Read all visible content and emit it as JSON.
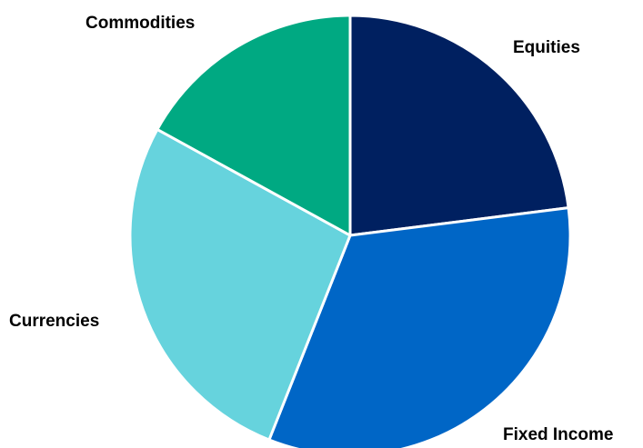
{
  "chart_data": {
    "type": "pie",
    "categories": [
      "Equities",
      "Fixed Income",
      "Currencies",
      "Commodities"
    ],
    "values": [
      23,
      33,
      27,
      17
    ],
    "colors": [
      "#002060",
      "#0066C6",
      "#66D3DD",
      "#00A982"
    ],
    "start_angle_deg": 0,
    "direction": "clockwise",
    "legend": "none",
    "labels": {
      "equities": "Equities",
      "fixed_income": "Fixed Income",
      "currencies": "Currencies",
      "commodities": "Commodities"
    }
  }
}
